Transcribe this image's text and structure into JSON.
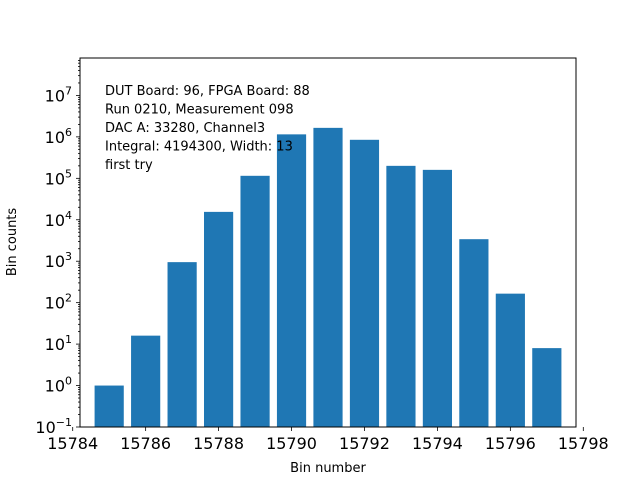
{
  "chart_data": {
    "type": "bar",
    "scale_y": "log",
    "x": [
      15785,
      15786,
      15787,
      15788,
      15789,
      15790,
      15791,
      15792,
      15793,
      15794,
      15795,
      15796,
      15797
    ],
    "values": [
      1,
      16,
      950,
      15500,
      115000,
      1150000,
      1650000,
      850000,
      200000,
      160000,
      3400,
      165,
      8
    ],
    "xlim": [
      15784.2,
      15797.8
    ],
    "ylim": [
      0.1,
      80000000
    ],
    "xticks": [
      15784,
      15786,
      15788,
      15790,
      15792,
      15794,
      15796,
      15798
    ],
    "xtick_labels": [
      "15784",
      "15786",
      "15788",
      "15790",
      "15792",
      "15794",
      "15796",
      "15798"
    ],
    "yticks_exp": [
      -1,
      0,
      1,
      2,
      3,
      4,
      5,
      6,
      7
    ],
    "ytick_base": "10",
    "xlabel": "Bin number",
    "ylabel": "Bin counts",
    "annotation_lines": [
      "DUT Board: 96, FPGA Board: 88",
      "Run 0210, Measurement 098",
      "DAC A: 33280, Channel3",
      "Integral: 4194300, Width: 13",
      "first try"
    ],
    "bar_color": "#1f77b4"
  }
}
